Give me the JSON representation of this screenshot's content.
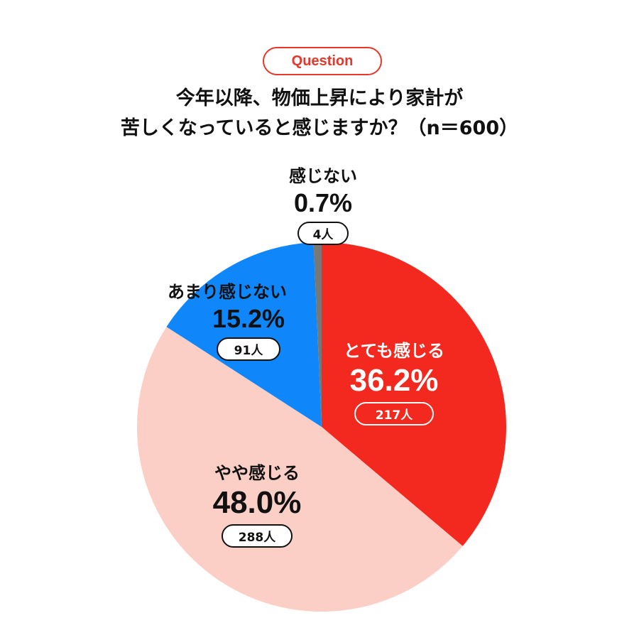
{
  "badge": "Question",
  "question": {
    "line1": "今年以降、物価上昇により家計が",
    "line2": "苦しくなっていると感じますか？（n＝600）"
  },
  "chart_data": {
    "type": "pie",
    "slices": [
      {
        "name": "とても感じる",
        "percent": 36.2,
        "percent_label": "36.2%",
        "count_label": "217人",
        "color": "#f3281e"
      },
      {
        "name": "やや感じる",
        "percent": 48.0,
        "percent_label": "48.0%",
        "count_label": "288人",
        "color": "#fccfc6"
      },
      {
        "name": "あまり感じない",
        "percent": 15.2,
        "percent_label": "15.2%",
        "count_label": "91人",
        "color": "#0f87fa"
      },
      {
        "name": "感じない",
        "percent": 0.7,
        "percent_label": "0.7%",
        "count_label": "4人",
        "color": "#777777"
      }
    ]
  }
}
